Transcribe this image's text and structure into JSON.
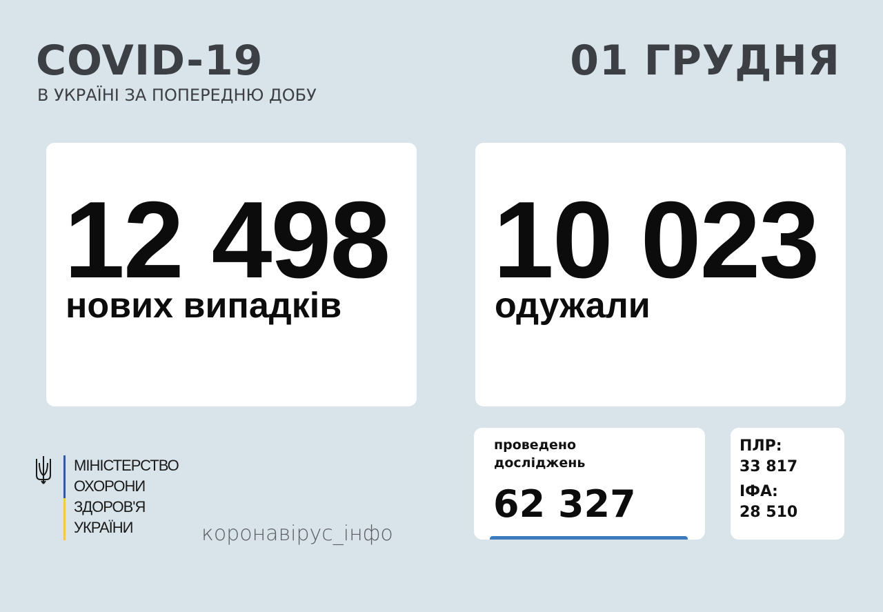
{
  "header": {
    "title": "COVID-19",
    "subtitle": "В УКРАЇНІ ЗА ПОПЕРЕДНЮ ДОБУ",
    "date": "01 ГРУДНЯ"
  },
  "cases": {
    "value": "12 498",
    "label": "нових випадків"
  },
  "recovered": {
    "value": "10 023",
    "label": "одужали"
  },
  "tests": {
    "label_line1": "проведено",
    "label_line2": "досліджень",
    "value": "62 327",
    "accent": "#3d7ac0"
  },
  "breakdown": {
    "pcr_label": "ПЛР:",
    "pcr_value": "33 817",
    "ifa_label": "ІФА:",
    "ifa_value": "28 510"
  },
  "logo": {
    "icon": "trident-icon",
    "lines": [
      "МІНІСТЕРСТВО",
      "ОХОРОНИ",
      "ЗДОРОВ'Я",
      "УКРАЇНИ"
    ],
    "colors": {
      "blue": "#2f5aa8",
      "yellow": "#f2c94c"
    }
  },
  "footer": {
    "site": "коронавірус_інфо"
  },
  "colors": {
    "background": "#d9e4ea",
    "heading": "#3c4045"
  }
}
